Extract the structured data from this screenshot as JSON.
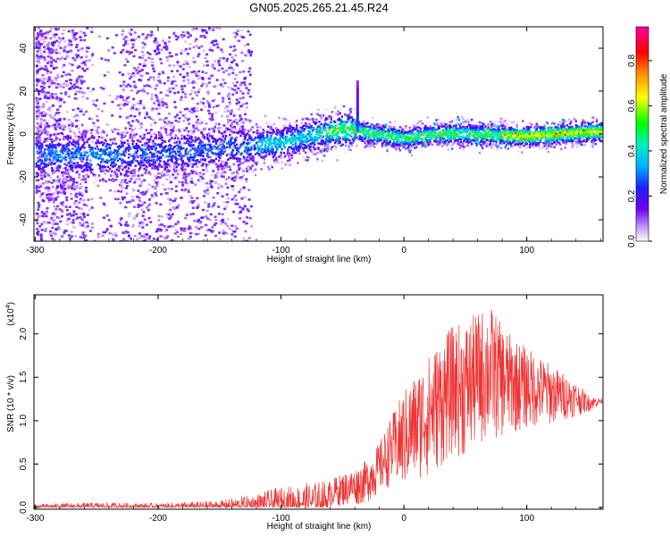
{
  "title": "GN05.2025.265.21.45.R24",
  "chart_data": [
    {
      "type": "heatmap",
      "xlabel": "Height of straight line (km)",
      "ylabel": "Frequency (Hz)",
      "xlim": [
        -301,
        162
      ],
      "ylim": [
        -50,
        50
      ],
      "x_ticks": [
        "-300",
        "-200",
        "-100",
        "0",
        "100"
      ],
      "y_ticks": [
        "-40",
        "-20",
        "0",
        "20",
        "40"
      ],
      "colorbar": {
        "label": "Normalized spectral amplitude",
        "range": [
          0.0,
          0.95
        ],
        "ticks": [
          "0.0",
          "0.2",
          "0.4",
          "0.6",
          "0.8"
        ]
      },
      "ridge": {
        "x": [
          -300,
          -250,
          -200,
          -150,
          -100,
          -70,
          -50,
          -40,
          -25,
          0,
          25,
          50,
          100,
          150,
          162
        ],
        "freq": [
          -10,
          -10,
          -9,
          -7,
          -4,
          0,
          2,
          2,
          0,
          -2,
          0,
          0,
          -1,
          1,
          1
        ]
      },
      "spike": {
        "x": -38,
        "freq_top": 25,
        "amplitude": 0.3
      }
    },
    {
      "type": "line",
      "xlabel": "Height of straight line (km)",
      "ylabel": "SNR (10 * v/v)",
      "multiplier_label": "(x10",
      "multiplier_exp": "4",
      "xlim": [
        -301,
        162
      ],
      "ylim": [
        -0.02,
        2.45
      ],
      "x_ticks": [
        "-300",
        "-200",
        "-100",
        "0",
        "100"
      ],
      "y_ticks": [
        "0.0",
        "0.5",
        "1.0",
        "1.5",
        "2.0"
      ],
      "color": "#ee3333",
      "envelope": {
        "x": [
          -300,
          -250,
          -200,
          -150,
          -120,
          -100,
          -80,
          -60,
          -40,
          -30,
          -20,
          -10,
          0,
          10,
          20,
          30,
          40,
          50,
          60,
          70,
          80,
          90,
          100,
          120,
          140,
          150,
          162
        ],
        "upper": [
          0.04,
          0.06,
          0.05,
          0.08,
          0.16,
          0.24,
          0.28,
          0.33,
          0.45,
          0.55,
          0.75,
          1.05,
          1.35,
          1.55,
          1.75,
          1.95,
          2.1,
          2.15,
          2.25,
          2.35,
          2.1,
          1.95,
          1.85,
          1.65,
          1.45,
          1.3,
          1.25
        ],
        "lower": [
          0.0,
          0.0,
          0.0,
          0.0,
          0.0,
          0.0,
          0.0,
          0.0,
          0.02,
          0.05,
          0.15,
          0.25,
          0.2,
          0.3,
          0.35,
          0.45,
          0.6,
          0.55,
          0.7,
          0.75,
          0.8,
          0.85,
          0.9,
          0.95,
          1.05,
          1.1,
          1.2
        ]
      }
    }
  ]
}
